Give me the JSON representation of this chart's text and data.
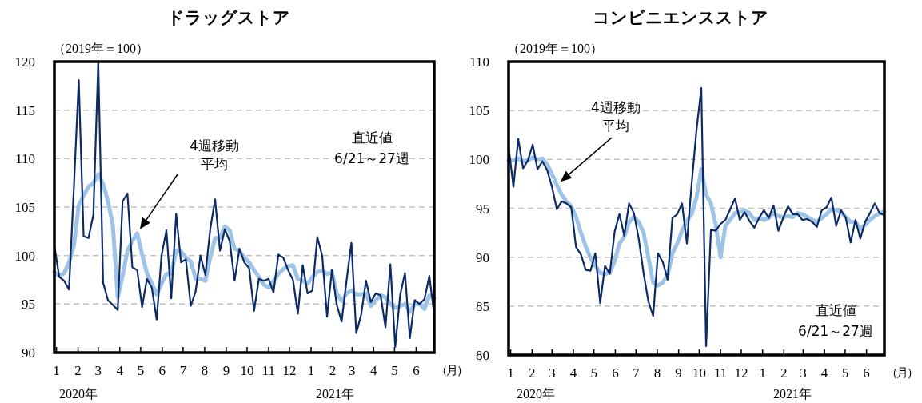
{
  "chart_data": [
    {
      "type": "line",
      "title": "ドラッグストア",
      "ylabel": "（2019年＝100）",
      "xlabel": "（月）",
      "annotations": [
        "直近値",
        "6/21～27週",
        "2020年",
        "2021年"
      ],
      "grid": "y",
      "x": [
        "2019-12-29",
        "2020-01-05",
        "2020-01-12",
        "2020-01-19",
        "2020-01-26",
        "2020-02-02",
        "2020-02-09",
        "2020-02-16",
        "2020-02-23",
        "2020-03-01",
        "2020-03-08",
        "2020-03-15",
        "2020-03-22",
        "2020-03-29",
        "2020-04-05",
        "2020-04-12",
        "2020-04-19",
        "2020-04-26",
        "2020-05-03",
        "2020-05-10",
        "2020-05-17",
        "2020-05-24",
        "2020-05-31",
        "2020-06-07",
        "2020-06-14",
        "2020-06-21",
        "2020-06-28",
        "2020-07-05",
        "2020-07-12",
        "2020-07-19",
        "2020-07-26",
        "2020-08-02",
        "2020-08-09",
        "2020-08-16",
        "2020-08-23",
        "2020-08-30",
        "2020-09-06",
        "2020-09-13",
        "2020-09-20",
        "2020-09-27",
        "2020-10-04",
        "2020-10-11",
        "2020-10-18",
        "2020-10-25",
        "2020-11-01",
        "2020-11-08",
        "2020-11-15",
        "2020-11-22",
        "2020-11-29",
        "2020-12-06",
        "2020-12-13",
        "2020-12-20",
        "2020-12-27",
        "2021-01-03",
        "2021-01-10",
        "2021-01-17",
        "2021-01-24",
        "2021-01-31",
        "2021-02-07",
        "2021-02-14",
        "2021-02-21",
        "2021-02-28",
        "2021-03-07",
        "2021-03-14",
        "2021-03-21",
        "2021-03-28",
        "2021-04-04",
        "2021-04-11",
        "2021-04-18",
        "2021-04-25",
        "2021-05-02",
        "2021-05-09",
        "2021-05-16",
        "2021-05-23",
        "2021-05-30",
        "2021-06-06",
        "2021-06-13",
        "2021-06-20",
        "2021-06-27"
      ],
      "series": [
        {
          "name": "4週移動平均",
          "color": "#9dc3e6",
          "values": [
            98.3,
            97.9,
            98.2,
            99.3,
            101,
            105.2,
            106.2,
            107.1,
            107.5,
            108.4,
            107.4,
            105.6,
            103.1,
            95.7,
            97.9,
            100.5,
            101.5,
            102.3,
            100.1,
            98.2,
            97.1,
            96,
            97.1,
            98.1,
            98.1,
            100.5,
            100.4,
            99.8,
            99.4,
            97.6,
            97.6,
            97.4,
            99.8,
            101.8,
            101.8,
            103,
            102.6,
            100.7,
            100.5,
            99.8,
            99.3,
            98.5,
            97.8,
            97,
            96.7,
            97.4,
            98.1,
            98.6,
            98.9,
            99,
            97.6,
            97.4,
            97.1,
            97.8,
            98.3,
            98.5,
            98.1,
            98.3,
            96.1,
            95.3,
            96.1,
            96.4,
            96,
            96,
            96.1,
            94.8,
            95.4,
            95.9,
            95.7,
            95,
            94.6,
            94.8,
            95,
            94.2,
            95,
            95,
            94.5,
            95.9,
            95.6
          ]
        },
        {
          "color": "#0b2a66",
          "values": [
            101,
            97.8,
            97.4,
            96.5,
            107,
            118.1,
            102,
            101.8,
            104.2,
            120,
            97.2,
            95.4,
            94.9,
            94.4,
            105.6,
            106.4,
            98.8,
            98.5,
            94.7,
            97.6,
            96.7,
            93.4,
            100,
            102.6,
            95.6,
            104.3,
            99.3,
            99.6,
            94.8,
            96.3,
            100,
            98,
            102.7,
            105.8,
            100.5,
            102.7,
            101.5,
            97.4,
            100.7,
            99.3,
            98.7,
            94.3,
            97.6,
            97.4,
            97.6,
            96.2,
            100.1,
            99.8,
            98.5,
            97.5,
            94,
            99,
            96.1,
            96.4,
            101.9,
            100,
            93.7,
            98.5,
            94.9,
            93.2,
            97.4,
            101.3,
            92,
            93.9,
            97.4,
            95.2,
            96.1,
            95.9,
            92.6,
            99.1,
            90.6,
            95.9,
            98.2,
            91.5,
            95.4,
            95,
            95.5,
            97.9,
            93.9
          ]
        }
      ],
      "xlim": [
        "2019-12-29",
        "2021-06-27"
      ],
      "ylim": [
        90,
        120
      ],
      "yticks": [
        90,
        95,
        100,
        105,
        110,
        115,
        120
      ],
      "xticks": [
        {
          "value": "2020-01-01",
          "label": "1"
        },
        {
          "value": "2020-02-01",
          "label": "2"
        },
        {
          "value": "2020-03-01",
          "label": "3"
        },
        {
          "value": "2020-04-01",
          "label": "4"
        },
        {
          "value": "2020-05-01",
          "label": "5"
        },
        {
          "value": "2020-06-01",
          "label": "6"
        },
        {
          "value": "2020-07-01",
          "label": "7"
        },
        {
          "value": "2020-08-01",
          "label": "8"
        },
        {
          "value": "2020-09-01",
          "label": "9"
        },
        {
          "value": "2020-10-01",
          "label": "10"
        },
        {
          "value": "2020-11-01",
          "label": "11"
        },
        {
          "value": "2020-12-01",
          "label": "12"
        },
        {
          "value": "2021-01-01",
          "label": "1"
        },
        {
          "value": "2021-02-01",
          "label": "2"
        },
        {
          "value": "2021-03-01",
          "label": "3"
        },
        {
          "value": "2021-04-01",
          "label": "4"
        },
        {
          "value": "2021-05-01",
          "label": "5"
        },
        {
          "value": "2021-06-01",
          "label": "6"
        }
      ]
    },
    {
      "type": "line",
      "title": "コンビニエンスストア",
      "ylabel": "（2019年＝100）",
      "xlabel": "（月）",
      "annotations": [
        "直近値",
        "6/21～27週",
        "2020年",
        "2021年"
      ],
      "grid": "y",
      "x": [
        "2019-12-29",
        "2020-01-05",
        "2020-01-12",
        "2020-01-19",
        "2020-01-26",
        "2020-02-02",
        "2020-02-09",
        "2020-02-16",
        "2020-02-23",
        "2020-03-01",
        "2020-03-08",
        "2020-03-15",
        "2020-03-22",
        "2020-03-29",
        "2020-04-05",
        "2020-04-12",
        "2020-04-19",
        "2020-04-26",
        "2020-05-03",
        "2020-05-10",
        "2020-05-17",
        "2020-05-24",
        "2020-05-31",
        "2020-06-07",
        "2020-06-14",
        "2020-06-21",
        "2020-06-28",
        "2020-07-05",
        "2020-07-12",
        "2020-07-19",
        "2020-07-26",
        "2020-08-02",
        "2020-08-09",
        "2020-08-16",
        "2020-08-23",
        "2020-08-30",
        "2020-09-06",
        "2020-09-13",
        "2020-09-20",
        "2020-09-27",
        "2020-10-04",
        "2020-10-11",
        "2020-10-18",
        "2020-10-25",
        "2020-11-01",
        "2020-11-08",
        "2020-11-15",
        "2020-11-22",
        "2020-11-29",
        "2020-12-06",
        "2020-12-13",
        "2020-12-20",
        "2020-12-27",
        "2021-01-03",
        "2021-01-10",
        "2021-01-17",
        "2021-01-24",
        "2021-01-31",
        "2021-02-07",
        "2021-02-14",
        "2021-02-21",
        "2021-02-28",
        "2021-03-07",
        "2021-03-14",
        "2021-03-21",
        "2021-03-28",
        "2021-04-04",
        "2021-04-11",
        "2021-04-18",
        "2021-04-25",
        "2021-05-02",
        "2021-05-09",
        "2021-05-16",
        "2021-05-23",
        "2021-05-30",
        "2021-06-06",
        "2021-06-13",
        "2021-06-20",
        "2021-06-27"
      ],
      "series": [
        {
          "name": "4週移動平均",
          "color": "#9dc3e6",
          "values": [
            99.9,
            99.9,
            100.1,
            99.8,
            99.9,
            100.2,
            100,
            100.1,
            99.5,
            98.5,
            97.4,
            96.4,
            95.7,
            95.2,
            94.1,
            92.5,
            91.1,
            89.9,
            89.1,
            88.4,
            88.3,
            88.4,
            89.6,
            91.4,
            92.1,
            93.6,
            94.1,
            93.6,
            92.5,
            90,
            87.4,
            87.1,
            87.4,
            88.1,
            90.4,
            91.4,
            92.7,
            93.7,
            94.4,
            96.1,
            99,
            96.4,
            95.5,
            93.3,
            90,
            93.2,
            93.8,
            94.5,
            94.6,
            94.8,
            94.5,
            93.8,
            94,
            93.8,
            94,
            94.5,
            94.2,
            94.1,
            94.2,
            94.1,
            94.5,
            94.4,
            94.1,
            93.8,
            93.6,
            94,
            94.4,
            94.9,
            94.8,
            94.6,
            94.1,
            93.6,
            93.6,
            92.9,
            93.3,
            93.8,
            94.2,
            94.5,
            94.7
          ]
        },
        {
          "color": "#0b2a66",
          "values": [
            101.3,
            97.2,
            102.1,
            99.1,
            99.9,
            101.5,
            99,
            99.8,
            98.9,
            97.2,
            94.9,
            95.7,
            95.5,
            95.1,
            91,
            90.3,
            88.7,
            88.6,
            90.4,
            85.3,
            89.1,
            88.3,
            92.6,
            94.4,
            92.2,
            95.5,
            94.5,
            91.9,
            88.4,
            85.5,
            84,
            90.4,
            89.5,
            87.7,
            94,
            94.4,
            95.5,
            91.4,
            97.5,
            103,
            107.3,
            80.9,
            92.8,
            92.7,
            93.4,
            93.8,
            94.9,
            96,
            93.8,
            94.6,
            93.7,
            93,
            94,
            94.8,
            94,
            95.3,
            92.7,
            94,
            95.2,
            94.4,
            94.4,
            93.8,
            93.9,
            93.6,
            93.1,
            94.8,
            95.1,
            96.1,
            93.2,
            94.8,
            94,
            91.5,
            93.8,
            91.9,
            93.6,
            94.5,
            95.5,
            94.5,
            94.3
          ]
        }
      ],
      "xlim": [
        "2019-12-29",
        "2021-06-27"
      ],
      "ylim": [
        80,
        110
      ],
      "yticks": [
        80,
        85,
        90,
        95,
        100,
        105,
        110
      ],
      "xticks": [
        {
          "value": "2020-01-01",
          "label": "1"
        },
        {
          "value": "2020-02-01",
          "label": "2"
        },
        {
          "value": "2020-03-01",
          "label": "3"
        },
        {
          "value": "2020-04-01",
          "label": "4"
        },
        {
          "value": "2020-05-01",
          "label": "5"
        },
        {
          "value": "2020-06-01",
          "label": "6"
        },
        {
          "value": "2020-07-01",
          "label": "7"
        },
        {
          "value": "2020-08-01",
          "label": "8"
        },
        {
          "value": "2020-09-01",
          "label": "9"
        },
        {
          "value": "2020-10-01",
          "label": "10"
        },
        {
          "value": "2020-11-01",
          "label": "11"
        },
        {
          "value": "2020-12-01",
          "label": "12"
        },
        {
          "value": "2021-01-01",
          "label": "1"
        },
        {
          "value": "2021-02-01",
          "label": "2"
        },
        {
          "value": "2021-03-01",
          "label": "3"
        },
        {
          "value": "2021-04-01",
          "label": "4"
        },
        {
          "value": "2021-05-01",
          "label": "5"
        },
        {
          "value": "2021-06-01",
          "label": "6"
        }
      ]
    }
  ]
}
